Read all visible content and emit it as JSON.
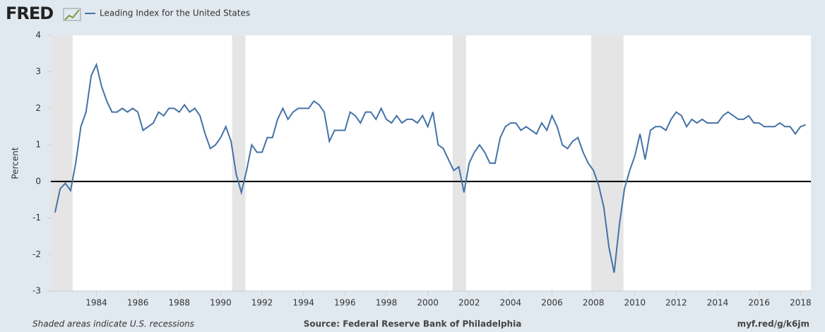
{
  "logo": "FRED",
  "footer": {
    "note": "Shaded areas indicate U.S. recessions",
    "source": "Source: Federal Reserve Bank of Philadelphia",
    "link": "myf.red/g/k6jm"
  },
  "chart_data": {
    "type": "line",
    "ylabel": "Percent",
    "x": [
      1982,
      1982.25,
      1982.5,
      1982.75,
      1983,
      1983.25,
      1983.5,
      1983.75,
      1984,
      1984.25,
      1984.5,
      1984.75,
      1985,
      1985.25,
      1985.5,
      1985.75,
      1986,
      1986.25,
      1986.5,
      1986.75,
      1987,
      1987.25,
      1987.5,
      1987.75,
      1988,
      1988.25,
      1988.5,
      1988.75,
      1989,
      1989.25,
      1989.5,
      1989.75,
      1990,
      1990.25,
      1990.5,
      1990.75,
      1991,
      1991.25,
      1991.5,
      1991.75,
      1992,
      1992.25,
      1992.5,
      1992.75,
      1993,
      1993.25,
      1993.5,
      1993.75,
      1994,
      1994.25,
      1994.5,
      1994.75,
      1995,
      1995.25,
      1995.5,
      1995.75,
      1996,
      1996.25,
      1996.5,
      1996.75,
      1997,
      1997.25,
      1997.5,
      1997.75,
      1998,
      1998.25,
      1998.5,
      1998.75,
      1999,
      1999.25,
      1999.5,
      1999.75,
      2000,
      2000.25,
      2000.5,
      2000.75,
      2001,
      2001.25,
      2001.5,
      2001.75,
      2002,
      2002.25,
      2002.5,
      2002.75,
      2003,
      2003.25,
      2003.5,
      2003.75,
      2004,
      2004.25,
      2004.5,
      2004.75,
      2005,
      2005.25,
      2005.5,
      2005.75,
      2006,
      2006.25,
      2006.5,
      2006.75,
      2007,
      2007.25,
      2007.5,
      2007.75,
      2008,
      2008.25,
      2008.5,
      2008.75,
      2009,
      2009.25,
      2009.5,
      2009.75,
      2010,
      2010.25,
      2010.5,
      2010.75,
      2011,
      2011.25,
      2011.5,
      2011.75,
      2012,
      2012.25,
      2012.5,
      2012.75,
      2013,
      2013.25,
      2013.5,
      2013.75,
      2014,
      2014.25,
      2014.5,
      2014.75,
      2015,
      2015.25,
      2015.5,
      2015.75,
      2016,
      2016.25,
      2016.5,
      2016.75,
      2017,
      2017.25,
      2017.5,
      2017.75,
      2018,
      2018.25
    ],
    "series": [
      {
        "name": "Leading Index for the United States",
        "color": "#4572a7",
        "values": [
          -0.85,
          -0.2,
          -0.05,
          -0.25,
          0.5,
          1.5,
          1.9,
          2.9,
          3.2,
          2.6,
          2.2,
          1.9,
          1.9,
          2.0,
          1.9,
          2.0,
          1.9,
          1.4,
          1.5,
          1.6,
          1.9,
          1.8,
          2.0,
          2.0,
          1.9,
          2.1,
          1.9,
          2.0,
          1.8,
          1.3,
          0.9,
          1.0,
          1.2,
          1.5,
          1.1,
          0.2,
          -0.3,
          0.3,
          1.0,
          0.8,
          0.8,
          1.2,
          1.2,
          1.7,
          2.0,
          1.7,
          1.9,
          2.0,
          2.0,
          2.0,
          2.2,
          2.1,
          1.9,
          1.1,
          1.4,
          1.4,
          1.4,
          1.9,
          1.8,
          1.6,
          1.9,
          1.9,
          1.7,
          2.0,
          1.7,
          1.6,
          1.8,
          1.6,
          1.7,
          1.7,
          1.6,
          1.8,
          1.5,
          1.9,
          1.0,
          0.9,
          0.6,
          0.3,
          0.4,
          -0.3,
          0.5,
          0.8,
          1.0,
          0.8,
          0.5,
          0.5,
          1.2,
          1.5,
          1.6,
          1.6,
          1.4,
          1.5,
          1.4,
          1.3,
          1.6,
          1.4,
          1.8,
          1.5,
          1.0,
          0.9,
          1.1,
          1.2,
          0.8,
          0.5,
          0.3,
          -0.1,
          -0.7,
          -1.8,
          -2.5,
          -1.2,
          -0.2,
          0.3,
          0.7,
          1.3,
          0.6,
          1.4,
          1.5,
          1.5,
          1.4,
          1.7,
          1.9,
          1.8,
          1.5,
          1.7,
          1.6,
          1.7,
          1.6,
          1.6,
          1.6,
          1.8,
          1.9,
          1.8,
          1.7,
          1.7,
          1.8,
          1.6,
          1.6,
          1.5,
          1.5,
          1.5,
          1.6,
          1.5,
          1.5,
          1.3,
          1.5,
          1.55
        ]
      }
    ],
    "recessions": [
      [
        1981.5,
        1982.85
      ],
      [
        1990.55,
        1991.2
      ],
      [
        2001.2,
        2001.85
      ],
      [
        2007.9,
        2009.45
      ]
    ],
    "recession_color": "#e5e5e5",
    "reference_line": 0,
    "xlim": [
      1981.8,
      2018.5
    ],
    "ylim": [
      -3,
      4
    ],
    "xticks": [
      1984,
      1986,
      1988,
      1990,
      1992,
      1994,
      1996,
      1998,
      2000,
      2002,
      2004,
      2006,
      2008,
      2010,
      2012,
      2014,
      2016,
      2018
    ],
    "yticks": [
      -3,
      -2,
      -1,
      0,
      1,
      2,
      3,
      4
    ],
    "grid": false
  }
}
